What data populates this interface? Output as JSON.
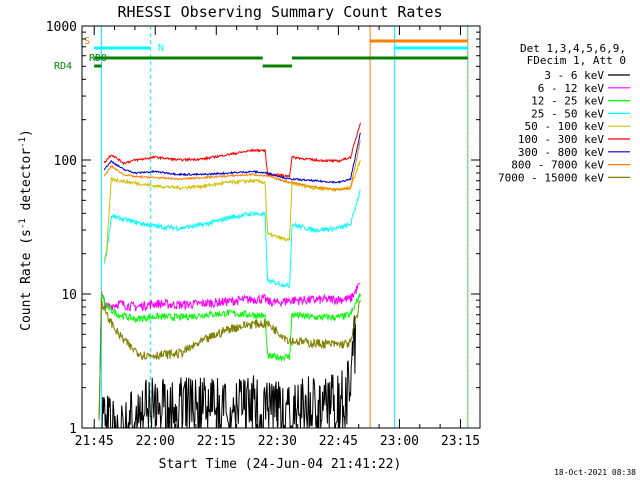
{
  "chart_data": {
    "type": "line",
    "title": "RHESSI Observing Summary Count Rates",
    "xlabel": "Start Time (24-Jun-04 21:41:22)",
    "ylabel_pre": "Count Rate (s",
    "ylabel_sup1": "-1",
    "ylabel_mid": " detector",
    "ylabel_sup2": "-1",
    "ylabel_post": ")",
    "timestamp": "18-Oct-2021 08:38",
    "y_scale": "log",
    "ylim": [
      1,
      1000
    ],
    "xlim_minutes": [
      21.8,
      23.33
    ],
    "x_ticks": [
      {
        "label": "21:45",
        "t": 21.75
      },
      {
        "label": "22:00",
        "t": 22.0
      },
      {
        "label": "22:15",
        "t": 22.25
      },
      {
        "label": "22:30",
        "t": 22.5
      },
      {
        "label": "22:45",
        "t": 22.75
      },
      {
        "label": "23:00",
        "t": 23.0
      },
      {
        "label": "23:15",
        "t": 23.25
      }
    ],
    "y_ticks": [
      {
        "label": "1",
        "v": 1
      },
      {
        "label": "10",
        "v": 10
      },
      {
        "label": "100",
        "v": 100
      },
      {
        "label": "1000",
        "v": 1000
      }
    ],
    "legend": {
      "placement": "right",
      "header": [
        "Det 1,3,4,5,6,9,",
        "FDecim 1, Att 0"
      ]
    },
    "flags": [
      {
        "name": "S",
        "color": "#ff7f00",
        "label": "S"
      },
      {
        "name": "N",
        "color": "#00ffff",
        "label": "N"
      },
      {
        "name": "RD0",
        "color": "#008000",
        "label": "RD0"
      },
      {
        "name": "RD4",
        "color": "#008000",
        "label": "RD4"
      }
    ],
    "series": [
      {
        "name": "3 - 6 keV",
        "color": "#000000",
        "values": [
          [
            21.78,
            1.5
          ],
          [
            21.85,
            1.1
          ],
          [
            21.92,
            1.6
          ],
          [
            22.0,
            1.8
          ],
          [
            22.1,
            1.8
          ],
          [
            22.2,
            1.8
          ],
          [
            22.3,
            1.8
          ],
          [
            22.4,
            1.9
          ],
          [
            22.45,
            1.7
          ],
          [
            22.5,
            1.8
          ],
          [
            22.55,
            1.5
          ],
          [
            22.6,
            1.8
          ],
          [
            22.7,
            1.8
          ],
          [
            22.78,
            2.2
          ],
          [
            22.82,
            6
          ]
        ]
      },
      {
        "name": "6 - 12 keV",
        "color": "#ff00ff",
        "values": [
          [
            21.77,
            1.2
          ],
          [
            21.78,
            10
          ],
          [
            21.8,
            8
          ],
          [
            21.85,
            8.5
          ],
          [
            21.92,
            8.0
          ],
          [
            22.0,
            8.5
          ],
          [
            22.1,
            8.3
          ],
          [
            22.2,
            8.5
          ],
          [
            22.3,
            8.8
          ],
          [
            22.35,
            9.0
          ],
          [
            22.42,
            9.2
          ],
          [
            22.45,
            9.2
          ],
          [
            22.46,
            8.8
          ],
          [
            22.5,
            8.6
          ],
          [
            22.55,
            9.0
          ],
          [
            22.6,
            9.0
          ],
          [
            22.7,
            9.1
          ],
          [
            22.8,
            9.2
          ],
          [
            22.84,
            12
          ]
        ]
      },
      {
        "name": "12 - 25 keV",
        "color": "#00ff00",
        "values": [
          [
            21.77,
            1.2
          ],
          [
            21.78,
            10
          ],
          [
            21.8,
            8
          ],
          [
            21.85,
            7.0
          ],
          [
            21.92,
            6.5
          ],
          [
            22.0,
            6.8
          ],
          [
            22.1,
            6.7
          ],
          [
            22.2,
            7.0
          ],
          [
            22.3,
            7.2
          ],
          [
            22.4,
            7.0
          ],
          [
            22.45,
            6.8
          ],
          [
            22.46,
            3.4
          ],
          [
            22.55,
            3.4
          ],
          [
            22.56,
            7.0
          ],
          [
            22.65,
            6.7
          ],
          [
            22.75,
            6.7
          ],
          [
            22.8,
            7.0
          ],
          [
            22.84,
            10
          ]
        ]
      },
      {
        "name": "25 - 50 keV",
        "color": "#00ffff",
        "values": [
          [
            21.79,
            17
          ],
          [
            21.8,
            20
          ],
          [
            21.82,
            38
          ],
          [
            21.9,
            35
          ],
          [
            22.0,
            32
          ],
          [
            22.1,
            31
          ],
          [
            22.2,
            33
          ],
          [
            22.3,
            37
          ],
          [
            22.4,
            40
          ],
          [
            22.45,
            39
          ],
          [
            22.46,
            12.5
          ],
          [
            22.55,
            11.5
          ],
          [
            22.56,
            33
          ],
          [
            22.65,
            30
          ],
          [
            22.75,
            31
          ],
          [
            22.8,
            33
          ],
          [
            22.84,
            60
          ]
        ]
      },
      {
        "name": "50 - 100 keV",
        "color": "#d0c000",
        "values": [
          [
            21.79,
            18
          ],
          [
            21.8,
            20
          ],
          [
            21.82,
            72
          ],
          [
            21.9,
            68
          ],
          [
            22.0,
            64
          ],
          [
            22.1,
            62
          ],
          [
            22.2,
            64
          ],
          [
            22.3,
            68
          ],
          [
            22.4,
            70
          ],
          [
            22.45,
            68
          ],
          [
            22.46,
            28
          ],
          [
            22.55,
            25
          ],
          [
            22.56,
            67
          ],
          [
            22.65,
            62
          ],
          [
            22.75,
            60
          ],
          [
            22.8,
            62
          ],
          [
            22.84,
            100
          ]
        ]
      },
      {
        "name": "100 - 300 keV",
        "color": "#ff0000",
        "values": [
          [
            21.79,
            95
          ],
          [
            21.82,
            110
          ],
          [
            21.87,
            95
          ],
          [
            21.92,
            100
          ],
          [
            22.0,
            105
          ],
          [
            22.1,
            100
          ],
          [
            22.2,
            102
          ],
          [
            22.3,
            110
          ],
          [
            22.4,
            118
          ],
          [
            22.45,
            118
          ],
          [
            22.46,
            78
          ],
          [
            22.55,
            76
          ],
          [
            22.56,
            105
          ],
          [
            22.65,
            100
          ],
          [
            22.75,
            98
          ],
          [
            22.8,
            105
          ],
          [
            22.84,
            190
          ]
        ]
      },
      {
        "name": "300 - 800 keV",
        "color": "#0000cc",
        "values": [
          [
            21.79,
            85
          ],
          [
            21.82,
            98
          ],
          [
            21.87,
            85
          ],
          [
            21.92,
            80
          ],
          [
            22.0,
            82
          ],
          [
            22.1,
            78
          ],
          [
            22.2,
            78
          ],
          [
            22.3,
            80
          ],
          [
            22.4,
            82
          ],
          [
            22.45,
            80
          ],
          [
            22.46,
            80
          ],
          [
            22.55,
            72
          ],
          [
            22.56,
            72
          ],
          [
            22.65,
            70
          ],
          [
            22.75,
            68
          ],
          [
            22.8,
            72
          ],
          [
            22.84,
            160
          ]
        ]
      },
      {
        "name": "800 - 7000 keV",
        "color": "#ff7f00",
        "values": [
          [
            21.79,
            75
          ],
          [
            21.82,
            90
          ],
          [
            21.87,
            78
          ],
          [
            21.92,
            75
          ],
          [
            22.0,
            74
          ],
          [
            22.1,
            72
          ],
          [
            22.2,
            74
          ],
          [
            22.3,
            76
          ],
          [
            22.4,
            78
          ],
          [
            22.45,
            76
          ],
          [
            22.46,
            76
          ],
          [
            22.55,
            68
          ],
          [
            22.56,
            68
          ],
          [
            22.65,
            63
          ],
          [
            22.75,
            60
          ],
          [
            22.8,
            62
          ],
          [
            22.84,
            140
          ]
        ]
      },
      {
        "name": "7000 - 15000 keV",
        "color": "#808000",
        "values": [
          [
            21.77,
            1.2
          ],
          [
            21.78,
            9
          ],
          [
            21.8,
            7
          ],
          [
            21.85,
            5.0
          ],
          [
            21.9,
            4.0
          ],
          [
            21.95,
            3.5
          ],
          [
            22.0,
            3.5
          ],
          [
            22.1,
            3.6
          ],
          [
            22.2,
            4.5
          ],
          [
            22.3,
            5.5
          ],
          [
            22.4,
            6.0
          ],
          [
            22.45,
            6.0
          ],
          [
            22.46,
            6.0
          ],
          [
            22.55,
            4.5
          ],
          [
            22.65,
            4.3
          ],
          [
            22.75,
            4.2
          ],
          [
            22.8,
            4.3
          ],
          [
            22.84,
            9
          ]
        ]
      }
    ]
  }
}
